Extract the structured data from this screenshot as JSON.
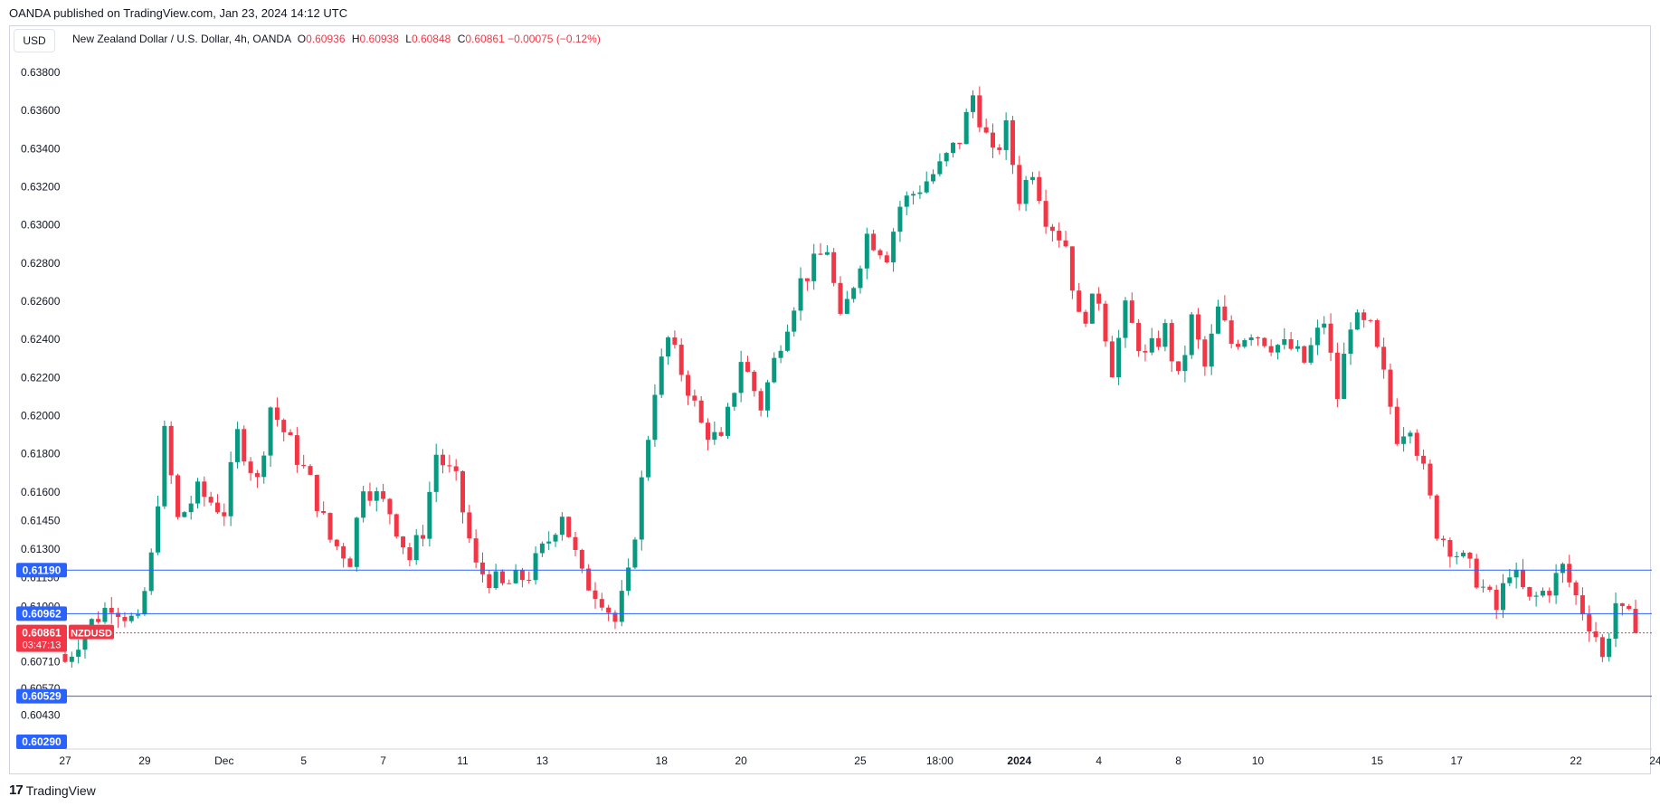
{
  "header": {
    "published": "OANDA published on TradingView.com, Jan 23, 2024 14:12 UTC"
  },
  "currency_badge": "USD",
  "legend": {
    "symbol": "New Zealand Dollar / U.S. Dollar, 4h, OANDA",
    "o_label": "O",
    "o_value": "0.60936",
    "h_label": "H",
    "h_value": "0.60938",
    "l_label": "L",
    "l_value": "0.60848",
    "c_label": "C",
    "c_value": "0.60861",
    "change": "−0.00075 (−0.12%)"
  },
  "brand": {
    "logo": "17",
    "name": "TradingView"
  },
  "colors": {
    "up": "#089981",
    "down": "#f23645",
    "hline": "#2962ff",
    "price_badge": "#f23645",
    "grid_text": "#131722",
    "axis": "#d1d4dc"
  },
  "chart_data": {
    "type": "candlestick",
    "title": "New Zealand Dollar / U.S. Dollar, 4h, OANDA",
    "ylim": [
      0.6018,
      0.6392
    ],
    "y_ticks": [
      "0.63800",
      "0.63600",
      "0.63400",
      "0.63200",
      "0.63000",
      "0.62800",
      "0.62600",
      "0.62400",
      "0.62200",
      "0.62000",
      "0.61800",
      "0.61600",
      "0.61450",
      "0.61300",
      "0.61150",
      "0.61000",
      "0.60710",
      "0.60570",
      "0.60430"
    ],
    "y_tick_values": [
      0.638,
      0.636,
      0.634,
      0.632,
      0.63,
      0.628,
      0.626,
      0.624,
      0.622,
      0.62,
      0.618,
      0.616,
      0.6145,
      0.613,
      0.6115,
      0.61,
      0.6071,
      0.6057,
      0.6043
    ],
    "x_ticks": [
      {
        "label": "27",
        "i": 0
      },
      {
        "label": "29",
        "i": 12
      },
      {
        "label": "Dec",
        "i": 24
      },
      {
        "label": "5",
        "i": 36
      },
      {
        "label": "7",
        "i": 48
      },
      {
        "label": "11",
        "i": 60
      },
      {
        "label": "13",
        "i": 72
      },
      {
        "label": "18",
        "i": 90
      },
      {
        "label": "20",
        "i": 102
      },
      {
        "label": "25",
        "i": 120
      },
      {
        "label": "18:00",
        "i": 132
      },
      {
        "label": "2024",
        "i": 144
      },
      {
        "label": "4",
        "i": 156
      },
      {
        "label": "8",
        "i": 168
      },
      {
        "label": "10",
        "i": 180
      },
      {
        "label": "15",
        "i": 198
      },
      {
        "label": "17",
        "i": 210
      },
      {
        "label": "22",
        "i": 228
      },
      {
        "label": "24",
        "i": 240
      }
    ],
    "horizontal_lines": [
      {
        "label": "0.61190",
        "value": 0.6119
      },
      {
        "label": "0.60962",
        "value": 0.60962
      },
      {
        "label": "0.60529",
        "value": 0.60529
      },
      {
        "label": "0.60290",
        "value": 0.6029
      }
    ],
    "last_price": {
      "label": "0.60861",
      "value": 0.60861,
      "symbol": "NZDUSD",
      "countdown": "03:47:13"
    },
    "anchors": [
      [
        0,
        0.6071
      ],
      [
        3,
        0.6088
      ],
      [
        7,
        0.6102
      ],
      [
        11,
        0.609
      ],
      [
        13,
        0.6125
      ],
      [
        15,
        0.619
      ],
      [
        17,
        0.6145
      ],
      [
        20,
        0.616
      ],
      [
        24,
        0.615
      ],
      [
        26,
        0.619
      ],
      [
        29,
        0.6165
      ],
      [
        31,
        0.6205
      ],
      [
        34,
        0.6185
      ],
      [
        37,
        0.6165
      ],
      [
        40,
        0.6135
      ],
      [
        43,
        0.6125
      ],
      [
        45,
        0.6165
      ],
      [
        49,
        0.615
      ],
      [
        52,
        0.6125
      ],
      [
        54,
        0.614
      ],
      [
        56,
        0.618
      ],
      [
        59,
        0.6165
      ],
      [
        62,
        0.612
      ],
      [
        66,
        0.611
      ],
      [
        70,
        0.6117
      ],
      [
        73,
        0.6135
      ],
      [
        75,
        0.615
      ],
      [
        78,
        0.6115
      ],
      [
        81,
        0.6105
      ],
      [
        83,
        0.6092
      ],
      [
        85,
        0.6115
      ],
      [
        87,
        0.6165
      ],
      [
        89,
        0.6215
      ],
      [
        91,
        0.624
      ],
      [
        94,
        0.6215
      ],
      [
        96,
        0.6195
      ],
      [
        99,
        0.6185
      ],
      [
        102,
        0.623
      ],
      [
        105,
        0.6205
      ],
      [
        108,
        0.624
      ],
      [
        111,
        0.627
      ],
      [
        115,
        0.6288
      ],
      [
        117,
        0.6248
      ],
      [
        119,
        0.627
      ],
      [
        121,
        0.6295
      ],
      [
        124,
        0.6285
      ],
      [
        126,
        0.631
      ],
      [
        129,
        0.632
      ],
      [
        132,
        0.633
      ],
      [
        135,
        0.6345
      ],
      [
        137,
        0.6368
      ],
      [
        140,
        0.6335
      ],
      [
        142,
        0.635
      ],
      [
        144,
        0.6315
      ],
      [
        146,
        0.633
      ],
      [
        148,
        0.6305
      ],
      [
        151,
        0.629
      ],
      [
        153,
        0.625
      ],
      [
        156,
        0.6262
      ],
      [
        158,
        0.6225
      ],
      [
        160,
        0.6255
      ],
      [
        163,
        0.623
      ],
      [
        166,
        0.6245
      ],
      [
        168,
        0.6218
      ],
      [
        170,
        0.625
      ],
      [
        172,
        0.6225
      ],
      [
        174,
        0.6255
      ],
      [
        176,
        0.6238
      ],
      [
        179,
        0.6245
      ],
      [
        182,
        0.6238
      ],
      [
        185,
        0.6235
      ],
      [
        187,
        0.6228
      ],
      [
        190,
        0.625
      ],
      [
        192,
        0.621
      ],
      [
        194,
        0.625
      ],
      [
        197,
        0.6245
      ],
      [
        199,
        0.622
      ],
      [
        201,
        0.619
      ],
      [
        203,
        0.6197
      ],
      [
        205,
        0.617
      ],
      [
        207,
        0.614
      ],
      [
        210,
        0.6128
      ],
      [
        213,
        0.6115
      ],
      [
        216,
        0.6098
      ],
      [
        218,
        0.612
      ],
      [
        221,
        0.6102
      ],
      [
        224,
        0.611
      ],
      [
        226,
        0.612
      ],
      [
        228,
        0.6105
      ],
      [
        231,
        0.6085
      ],
      [
        232,
        0.6072
      ],
      [
        234,
        0.6102
      ],
      [
        235,
        0.6095
      ],
      [
        236,
        0.6093
      ],
      [
        237,
        0.6086
      ]
    ]
  }
}
